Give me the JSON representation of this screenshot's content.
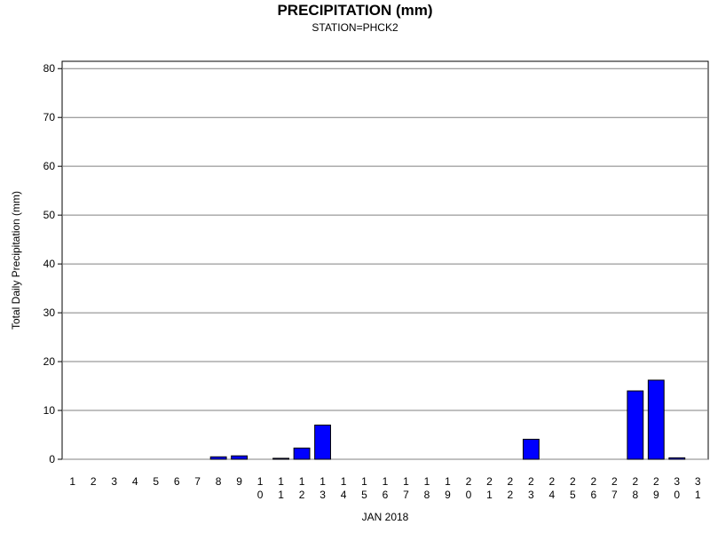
{
  "chart_data": {
    "type": "bar",
    "title": "PRECIPITATION (mm)",
    "subtitle": "STATION=PHCK2",
    "x_label": "JAN 2018",
    "y_label": "Total Daily Precipitation (mm)",
    "categories": [
      "1",
      "2",
      "3",
      "4",
      "5",
      "6",
      "7",
      "8",
      "9",
      "10",
      "11",
      "12",
      "13",
      "14",
      "15",
      "16",
      "17",
      "18",
      "19",
      "20",
      "21",
      "22",
      "23",
      "24",
      "25",
      "26",
      "27",
      "28",
      "29",
      "30",
      "31"
    ],
    "values": [
      0,
      0,
      0,
      0,
      0,
      0,
      0,
      0.5,
      0.7,
      0,
      0.2,
      2.3,
      7.0,
      0,
      0,
      0,
      0,
      0,
      0,
      0,
      0,
      0,
      4.1,
      0,
      0,
      0,
      0,
      14.0,
      16.2,
      0.3,
      0
    ],
    "color": "#0000ff",
    "ylim": [
      0,
      81.5
    ],
    "yticks": [
      0,
      10,
      20,
      30,
      40,
      50,
      60,
      70,
      80
    ],
    "grid": true
  }
}
